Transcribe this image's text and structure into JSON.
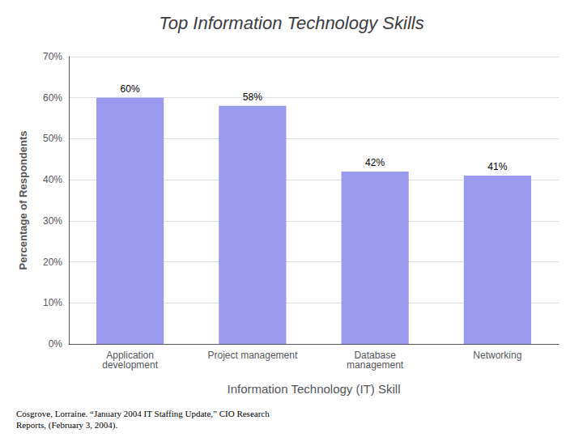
{
  "chart_data": {
    "type": "bar",
    "title": "Top Information Technology Skills",
    "categories": [
      "Application\ndevelopment",
      "Project management",
      "Database\nmanagement",
      "Networking"
    ],
    "values": [
      60,
      58,
      42,
      41
    ],
    "value_labels": [
      "60%",
      "58%",
      "42%",
      "41%"
    ],
    "data_labels": true,
    "color": "#9999EE",
    "xlabel": "Information Technology (IT) Skill",
    "ylabel": "Percentage of Respondents",
    "ylim": [
      0,
      70
    ],
    "yticks": [
      {
        "value": 0,
        "label": "0%"
      },
      {
        "value": 10,
        "label": "10%"
      },
      {
        "value": 20,
        "label": "20%"
      },
      {
        "value": 30,
        "label": "30%"
      },
      {
        "value": 40,
        "label": "40%"
      },
      {
        "value": 50,
        "label": "50%"
      },
      {
        "value": 60,
        "label": "60%"
      },
      {
        "value": 70,
        "label": "70%"
      }
    ],
    "grid": true,
    "annotations": [
      "Cosgrove, Lorraine. “January 2004 IT Staffing Update,” CIO Research\nReports, (February 3, 2004)."
    ]
  }
}
